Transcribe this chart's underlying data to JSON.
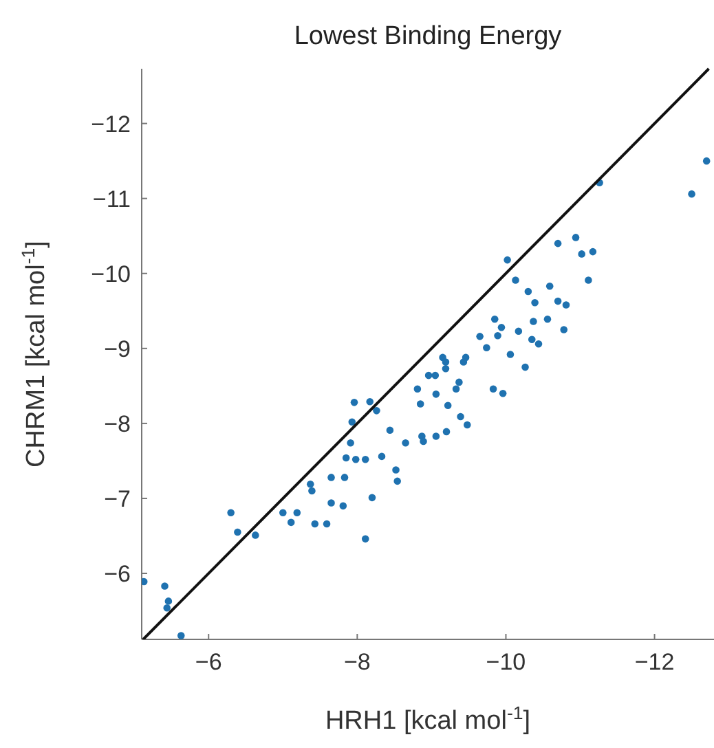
{
  "chart_data": {
    "type": "scatter",
    "title": "Lowest Binding Energy",
    "xlabel": "HRH1 [kcal mol$^{-1}$]",
    "ylabel": "CHRM1 [kcal mol$^{-1}$]",
    "xlim": [
      -5.1,
      -12.8
    ],
    "ylim": [
      -5.12,
      -12.73
    ],
    "xticks": [
      -6,
      -8,
      -10,
      -12
    ],
    "yticks": [
      -6,
      -7,
      -8,
      -9,
      -10,
      -11,
      -12
    ],
    "grid": false,
    "series": [
      {
        "color": "#1f72b0",
        "marker": "circle",
        "x": [
          -12.7,
          -12.5,
          -11.26,
          -10.94,
          -10.7,
          -11.17,
          -11.02,
          -10.02,
          -11.11,
          -10.13,
          -10.59,
          -10.3,
          -10.39,
          -10.7,
          -10.81,
          -9.85,
          -9.94,
          -9.65,
          -9.89,
          -10.17,
          -10.37,
          -10.56,
          -10.78,
          -10.35,
          -10.44,
          -9.74,
          -10.06,
          -9.15,
          -9.46,
          -10.26,
          -9.43,
          -9.19,
          -9.19,
          -8.96,
          -9.05,
          -9.37,
          -9.33,
          -8.81,
          -9.06,
          -9.83,
          -9.96,
          -8.85,
          -9.22,
          -7.96,
          -8.17,
          -8.26,
          -9.39,
          -9.48,
          -7.93,
          -8.44,
          -8.65,
          -8.87,
          -8.89,
          -9.06,
          -9.2,
          -7.91,
          -7.85,
          -7.98,
          -8.11,
          -8.33,
          -8.52,
          -8.54,
          -7.37,
          -7.39,
          -7.65,
          -7.83,
          -8.2,
          -7.65,
          -7.81,
          -7.0,
          -7.19,
          -7.11,
          -7.43,
          -7.59,
          -8.11,
          -6.3,
          -6.39,
          -6.63,
          -5.13,
          -5.41,
          -5.46,
          -5.44,
          -5.63
        ],
        "values": [
          -11.5,
          -11.06,
          -11.21,
          -10.48,
          -10.4,
          -10.29,
          -10.26,
          -10.18,
          -9.91,
          -9.91,
          -9.83,
          -9.76,
          -9.61,
          -9.63,
          -9.58,
          -9.39,
          -9.28,
          -9.16,
          -9.17,
          -9.23,
          -9.36,
          -9.39,
          -9.25,
          -9.12,
          -9.06,
          -9.01,
          -8.92,
          -8.88,
          -8.88,
          -8.75,
          -8.82,
          -8.82,
          -8.73,
          -8.64,
          -8.64,
          -8.55,
          -8.46,
          -8.46,
          -8.39,
          -8.46,
          -8.4,
          -8.26,
          -8.24,
          -8.28,
          -8.29,
          -8.17,
          -8.09,
          -7.98,
          -8.02,
          -7.91,
          -7.74,
          -7.83,
          -7.76,
          -7.83,
          -7.89,
          -7.74,
          -7.54,
          -7.52,
          -7.52,
          -7.56,
          -7.38,
          -7.23,
          -7.19,
          -7.1,
          -7.28,
          -7.28,
          -7.01,
          -6.94,
          -6.9,
          -6.81,
          -6.81,
          -6.68,
          -6.66,
          -6.66,
          -6.46,
          -6.81,
          -6.55,
          -6.51,
          -5.89,
          -5.83,
          -5.63,
          -5.54,
          -5.17
        ]
      },
      {
        "type": "line",
        "color": "#111111",
        "x": [
          -5.12,
          -12.73
        ],
        "values": [
          -5.12,
          -12.73
        ]
      }
    ]
  }
}
